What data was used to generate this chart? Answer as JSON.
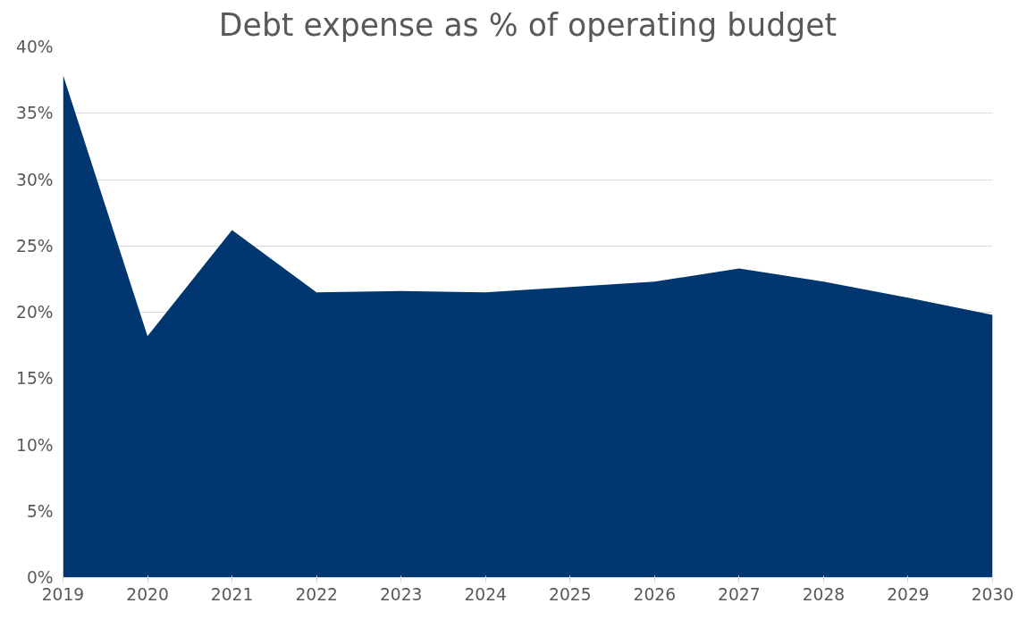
{
  "chart_data": {
    "type": "area",
    "title": "Debt expense as % of operating budget",
    "categories": [
      "2019",
      "2020",
      "2021",
      "2022",
      "2023",
      "2024",
      "2025",
      "2026",
      "2027",
      "2028",
      "2029",
      "2030"
    ],
    "values": [
      37.9,
      18.2,
      26.2,
      21.5,
      21.6,
      21.5,
      21.9,
      22.3,
      23.3,
      22.3,
      21.1,
      19.8
    ],
    "color": "#003770",
    "ylim": [
      0,
      40
    ],
    "yticks": [
      {
        "value": 0,
        "label": "0%"
      },
      {
        "value": 5,
        "label": "5%"
      },
      {
        "value": 10,
        "label": "10%"
      },
      {
        "value": 15,
        "label": "15%"
      },
      {
        "value": 20,
        "label": "20%"
      },
      {
        "value": 25,
        "label": "25%"
      },
      {
        "value": 30,
        "label": "30%"
      },
      {
        "value": 35,
        "label": "35%"
      },
      {
        "value": 40,
        "label": "40%"
      }
    ],
    "grid": "y"
  }
}
